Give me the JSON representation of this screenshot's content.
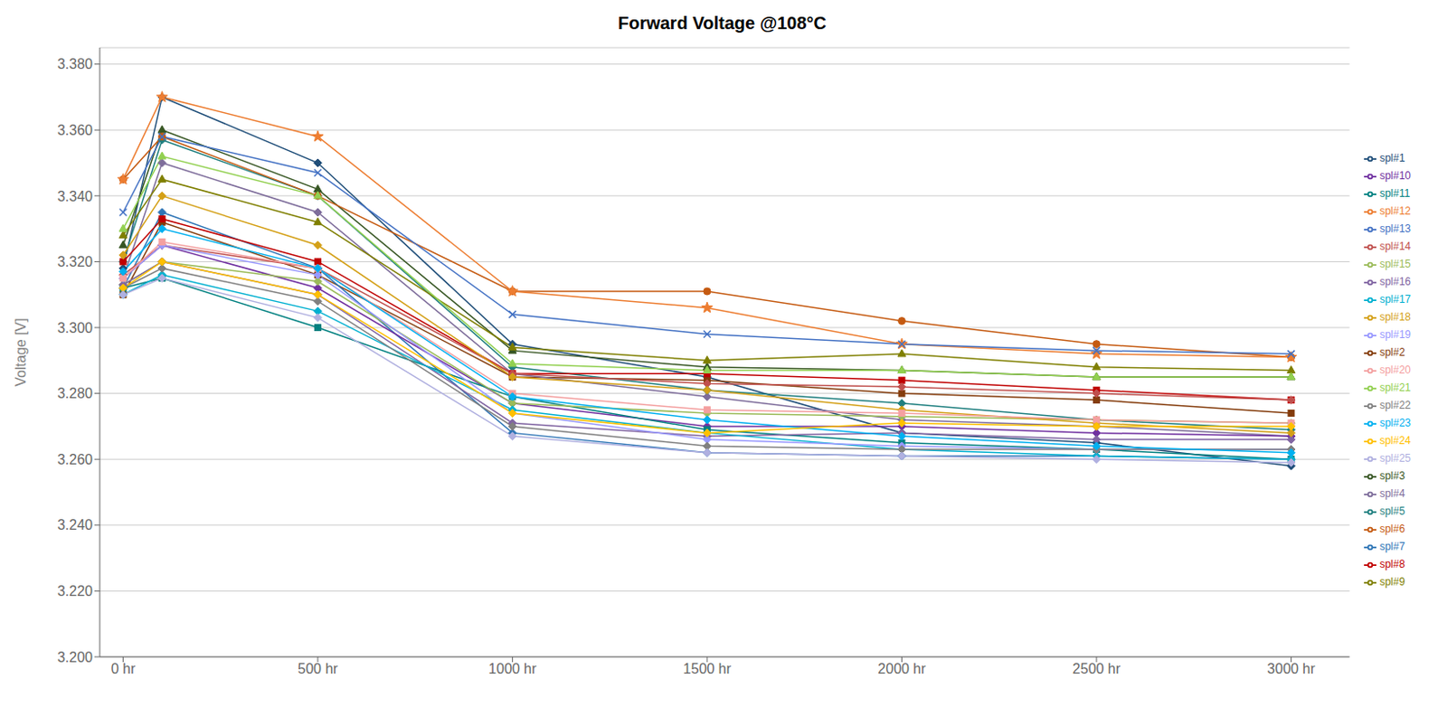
{
  "chart_data": {
    "type": "line",
    "title": "Forward Voltage @108°C",
    "y_label": "Voltage [V]",
    "x": [
      0,
      100,
      500,
      1000,
      1500,
      2000,
      2500,
      3000
    ],
    "xlim": [
      -60,
      3150
    ],
    "xticks": [
      {
        "value": 0,
        "label": "0 hr"
      },
      {
        "value": 500,
        "label": "500 hr"
      },
      {
        "value": 1000,
        "label": "1000 hr"
      },
      {
        "value": 1500,
        "label": "1500 hr"
      },
      {
        "value": 2000,
        "label": "2000 hr"
      },
      {
        "value": 2500,
        "label": "2500 hr"
      },
      {
        "value": 3000,
        "label": "3000 hr"
      }
    ],
    "ylim": [
      3.2,
      3.385
    ],
    "yticks": [
      {
        "value": 3.2,
        "label": "3.200"
      },
      {
        "value": 3.22,
        "label": "3.220"
      },
      {
        "value": 3.24,
        "label": "3.240"
      },
      {
        "value": 3.26,
        "label": "3.260"
      },
      {
        "value": 3.28,
        "label": "3.280"
      },
      {
        "value": 3.3,
        "label": "3.300"
      },
      {
        "value": 3.32,
        "label": "3.320"
      },
      {
        "value": 3.34,
        "label": "3.340"
      },
      {
        "value": 3.36,
        "label": "3.360"
      },
      {
        "value": 3.38,
        "label": "3.380"
      }
    ],
    "grid": "y",
    "legend": "right",
    "series": [
      {
        "name": "spl#1",
        "color": "#1f4e79",
        "marker": "diamond",
        "values": [
          3.318,
          3.37,
          3.35,
          3.295,
          3.285,
          3.268,
          3.265,
          3.258
        ]
      },
      {
        "name": "spl#2",
        "color": "#843c0c",
        "marker": "square",
        "values": [
          3.31,
          3.332,
          3.316,
          3.285,
          3.284,
          3.28,
          3.278,
          3.274
        ]
      },
      {
        "name": "spl#3",
        "color": "#375623",
        "marker": "triangle",
        "values": [
          3.325,
          3.36,
          3.342,
          3.293,
          3.288,
          3.287,
          3.285,
          3.285
        ]
      },
      {
        "name": "spl#4",
        "color": "#7e6d9b",
        "marker": "diamond",
        "values": [
          3.315,
          3.35,
          3.335,
          3.286,
          3.279,
          3.272,
          3.27,
          3.267
        ]
      },
      {
        "name": "spl#5",
        "color": "#1f7f7f",
        "marker": "diamond",
        "values": [
          3.32,
          3.357,
          3.34,
          3.288,
          3.281,
          3.277,
          3.272,
          3.269
        ]
      },
      {
        "name": "spl#6",
        "color": "#c55a11",
        "marker": "circle",
        "values": [
          3.345,
          3.358,
          3.34,
          3.311,
          3.311,
          3.302,
          3.295,
          3.291
        ]
      },
      {
        "name": "spl#7",
        "color": "#2e75b6",
        "marker": "diamond",
        "values": [
          3.312,
          3.335,
          3.318,
          3.268,
          3.262,
          3.261,
          3.261,
          3.26
        ]
      },
      {
        "name": "spl#8",
        "color": "#c00000",
        "marker": "square",
        "values": [
          3.32,
          3.333,
          3.32,
          3.286,
          3.286,
          3.284,
          3.281,
          3.278
        ]
      },
      {
        "name": "spl#9",
        "color": "#7f7f00",
        "marker": "triangle",
        "values": [
          3.328,
          3.345,
          3.332,
          3.294,
          3.29,
          3.292,
          3.288,
          3.287
        ]
      },
      {
        "name": "spl#10",
        "color": "#7030a0",
        "marker": "diamond",
        "values": [
          3.315,
          3.325,
          3.312,
          3.277,
          3.27,
          3.27,
          3.268,
          3.267
        ]
      },
      {
        "name": "spl#11",
        "color": "#008080",
        "marker": "square",
        "values": [
          3.312,
          3.315,
          3.3,
          3.279,
          3.269,
          3.265,
          3.263,
          3.26
        ]
      },
      {
        "name": "spl#12",
        "color": "#ed7d31",
        "marker": "star",
        "values": [
          3.345,
          3.37,
          3.358,
          3.311,
          3.306,
          3.295,
          3.292,
          3.291
        ]
      },
      {
        "name": "spl#13",
        "color": "#4472c4",
        "marker": "x",
        "values": [
          3.335,
          3.358,
          3.347,
          3.304,
          3.298,
          3.295,
          3.293,
          3.292
        ]
      },
      {
        "name": "spl#14",
        "color": "#c0504d",
        "marker": "diamond",
        "values": [
          3.316,
          3.325,
          3.318,
          3.286,
          3.283,
          3.282,
          3.28,
          3.278
        ]
      },
      {
        "name": "spl#15",
        "color": "#9bbb59",
        "marker": "diamond",
        "values": [
          3.313,
          3.32,
          3.314,
          3.277,
          3.274,
          3.273,
          3.272,
          3.271
        ]
      },
      {
        "name": "spl#16",
        "color": "#8064a2",
        "marker": "diamond",
        "values": [
          3.313,
          3.32,
          3.31,
          3.271,
          3.267,
          3.268,
          3.266,
          3.266
        ]
      },
      {
        "name": "spl#17",
        "color": "#00b0d0",
        "marker": "diamond",
        "values": [
          3.31,
          3.316,
          3.305,
          3.275,
          3.268,
          3.263,
          3.261,
          3.26
        ]
      },
      {
        "name": "spl#18",
        "color": "#d4a017",
        "marker": "diamond",
        "values": [
          3.322,
          3.34,
          3.325,
          3.285,
          3.281,
          3.275,
          3.271,
          3.268
        ]
      },
      {
        "name": "spl#19",
        "color": "#9999ff",
        "marker": "diamond",
        "values": [
          3.315,
          3.325,
          3.316,
          3.274,
          3.266,
          3.264,
          3.263,
          3.263
        ]
      },
      {
        "name": "spl#20",
        "color": "#f4a0a0",
        "marker": "square",
        "values": [
          3.315,
          3.326,
          3.318,
          3.28,
          3.275,
          3.274,
          3.272,
          3.271
        ]
      },
      {
        "name": "spl#21",
        "color": "#92d050",
        "marker": "triangle",
        "values": [
          3.33,
          3.352,
          3.34,
          3.289,
          3.287,
          3.287,
          3.285,
          3.285
        ]
      },
      {
        "name": "spl#22",
        "color": "#808080",
        "marker": "diamond",
        "values": [
          3.312,
          3.318,
          3.308,
          3.27,
          3.264,
          3.263,
          3.263,
          3.263
        ]
      },
      {
        "name": "spl#23",
        "color": "#00b0f0",
        "marker": "diamond",
        "values": [
          3.317,
          3.33,
          3.318,
          3.279,
          3.272,
          3.267,
          3.264,
          3.262
        ]
      },
      {
        "name": "spl#24",
        "color": "#ffc000",
        "marker": "diamond",
        "values": [
          3.312,
          3.32,
          3.31,
          3.274,
          3.268,
          3.271,
          3.27,
          3.27
        ]
      },
      {
        "name": "spl#25",
        "color": "#b0b0e0",
        "marker": "diamond",
        "values": [
          3.31,
          3.315,
          3.303,
          3.267,
          3.262,
          3.261,
          3.26,
          3.259
        ]
      }
    ]
  }
}
